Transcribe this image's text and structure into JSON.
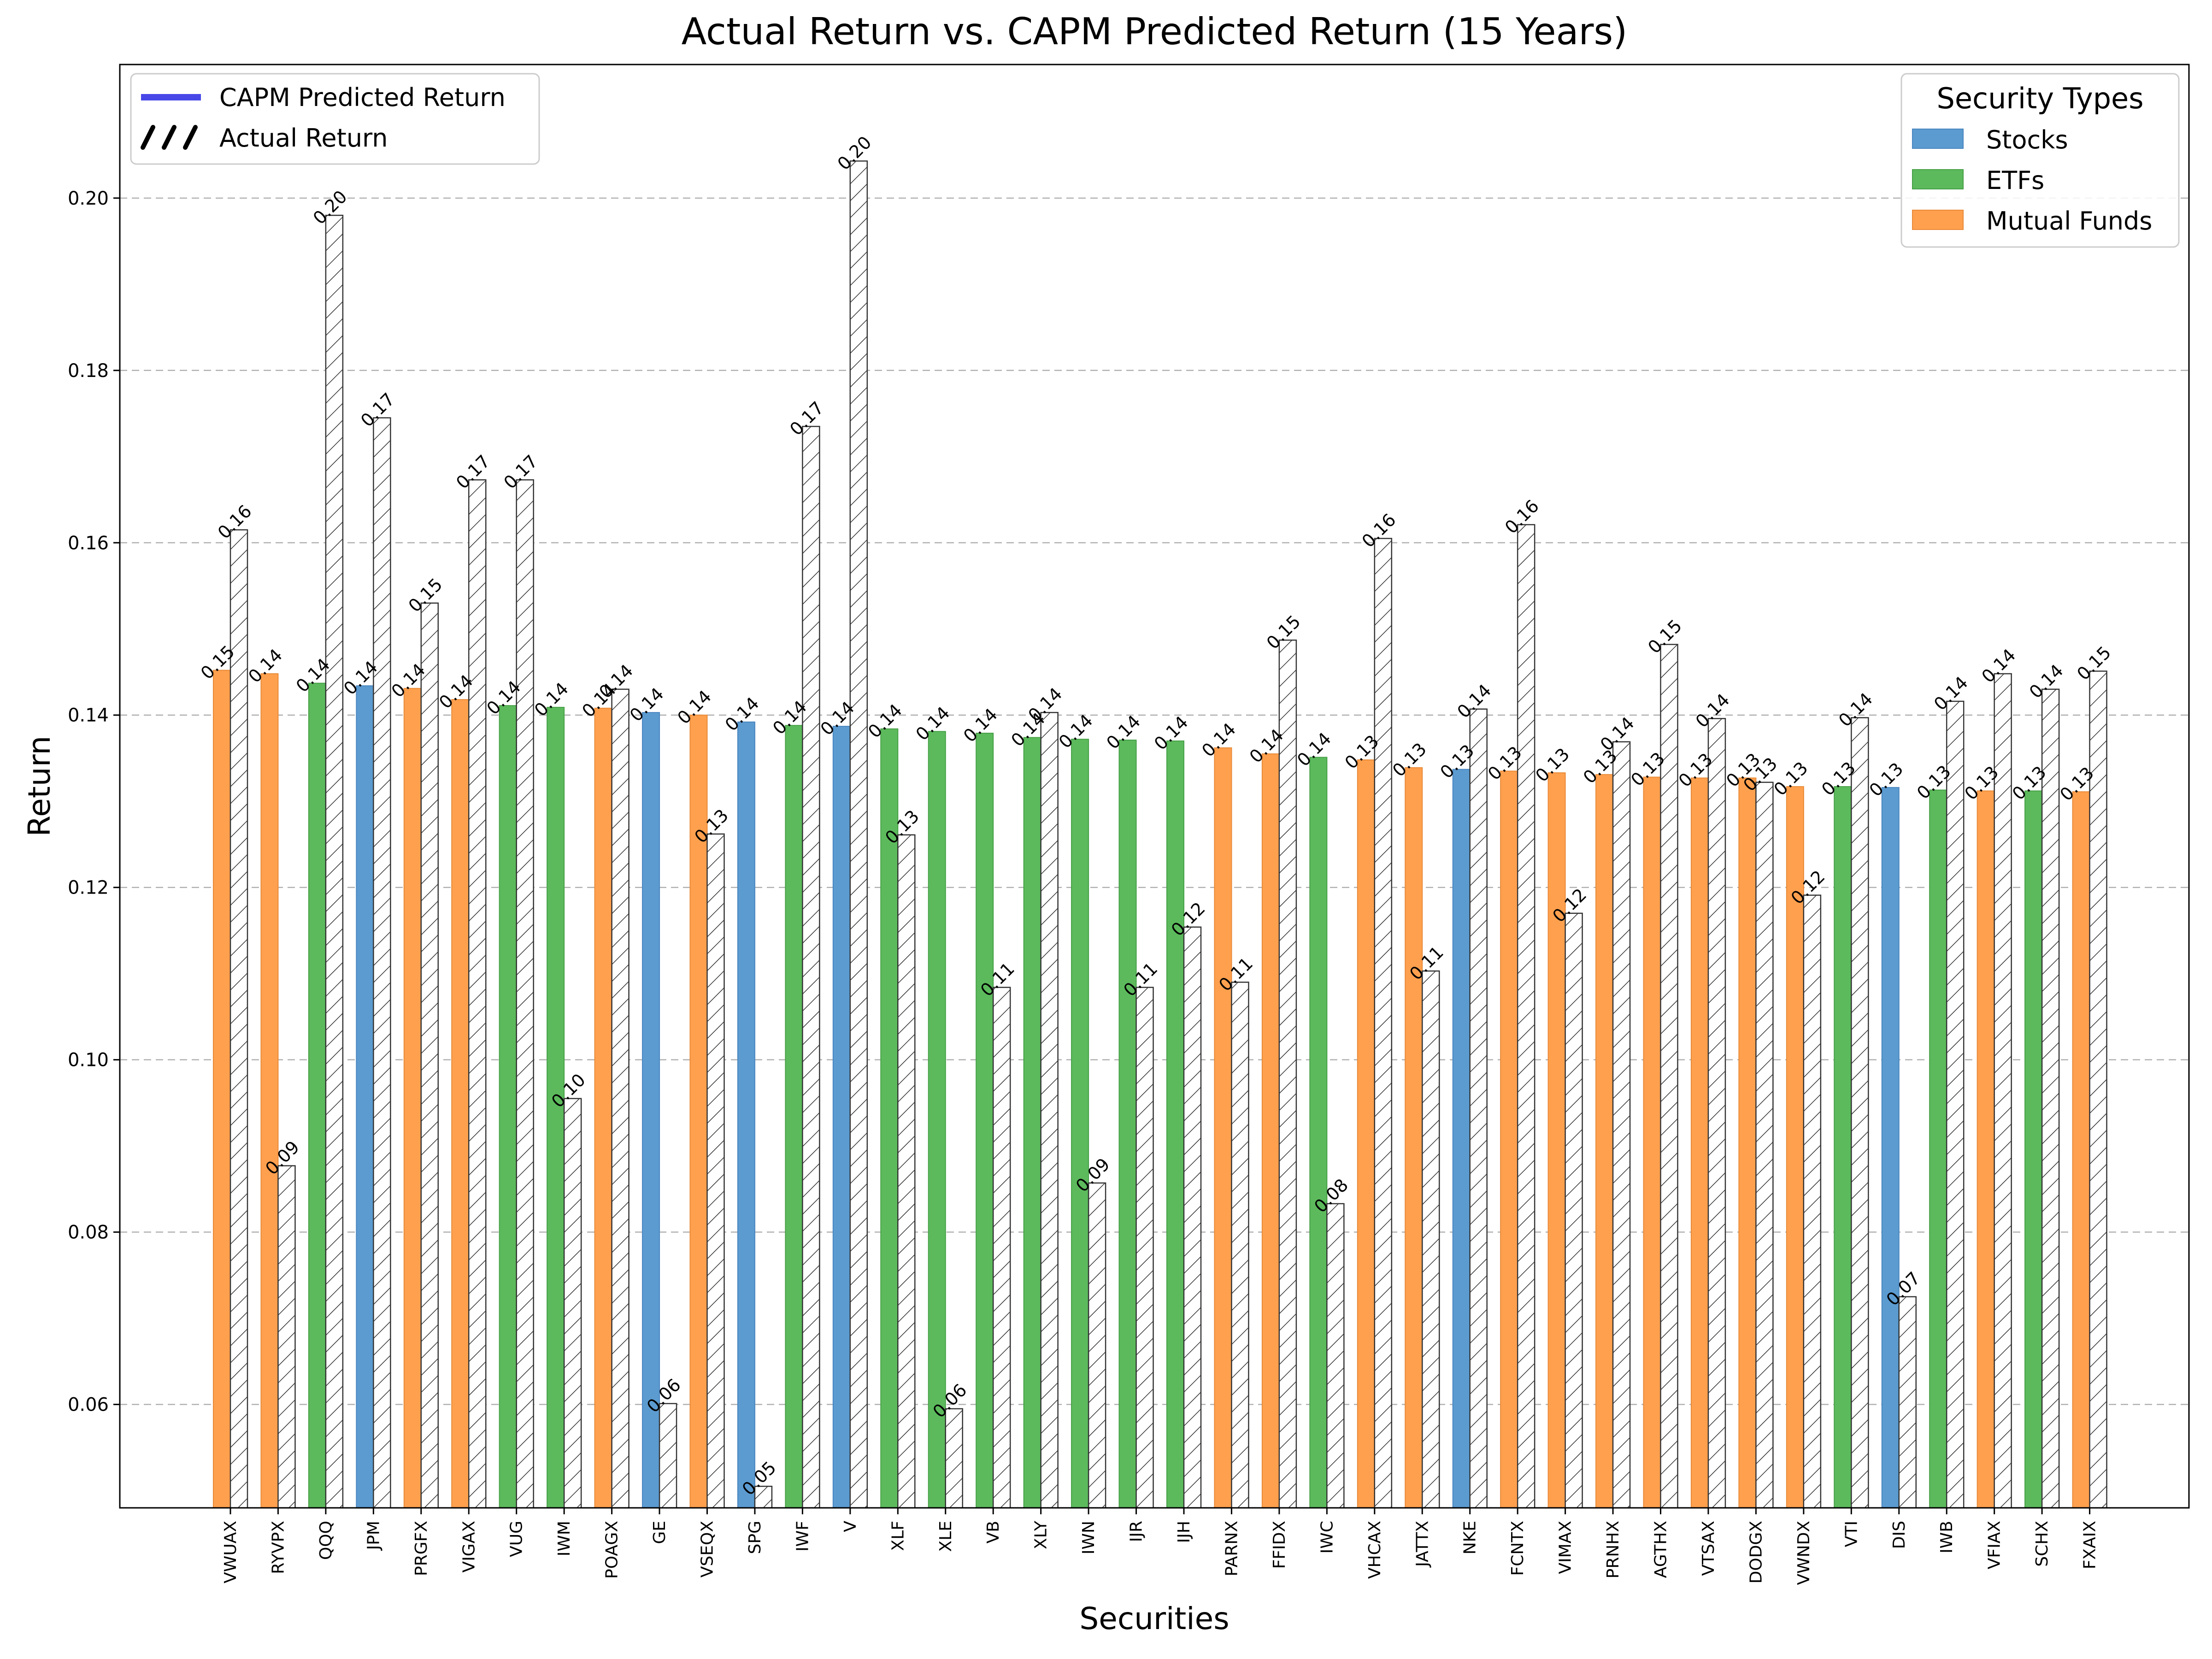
{
  "chart_data": {
    "type": "bar",
    "title": "Actual Return vs. CAPM Predicted Return (15 Years)",
    "xlabel": "Securities",
    "ylabel": "Return",
    "ylim": [
      0.048,
      0.2155
    ],
    "yticks": [
      0.06,
      0.08,
      0.1,
      0.12,
      0.14,
      0.16,
      0.18,
      0.2
    ],
    "grid": "y-dashed",
    "type_colors": {
      "Stocks": "#5b9bd0",
      "ETFs": "#5cba5c",
      "Mutual Funds": "#ffa04e"
    },
    "legend_returns": {
      "placement": "top-left",
      "items": [
        {
          "label": "CAPM Predicted Return",
          "color": "#4747e8"
        },
        {
          "label": "Actual Return",
          "hatch": true
        }
      ]
    },
    "legend_types": {
      "placement": "top-right",
      "title": "Security Types",
      "items": [
        "Stocks",
        "ETFs",
        "Mutual Funds"
      ]
    },
    "categories": [
      "VWUAX",
      "RYVPX",
      "QQQ",
      "JPM",
      "PRGFX",
      "VIGAX",
      "VUG",
      "IWM",
      "POAGX",
      "GE",
      "VSEQX",
      "SPG",
      "IWF",
      "V",
      "XLF",
      "XLE",
      "VB",
      "XLY",
      "IWN",
      "IJR",
      "IJH",
      "PARNX",
      "FFIDX",
      "IWC",
      "VHCAX",
      "JATTX",
      "NKE",
      "FCNTX",
      "VIMAX",
      "PRNHX",
      "AGTHX",
      "VTSAX",
      "DODGX",
      "VWNDX",
      "VTI",
      "DIS",
      "IWB",
      "VFIAX",
      "SCHX",
      "FXAIX"
    ],
    "security_types": [
      "Mutual Funds",
      "Mutual Funds",
      "ETFs",
      "Stocks",
      "Mutual Funds",
      "Mutual Funds",
      "ETFs",
      "ETFs",
      "Mutual Funds",
      "Stocks",
      "Mutual Funds",
      "Stocks",
      "ETFs",
      "Stocks",
      "ETFs",
      "ETFs",
      "ETFs",
      "ETFs",
      "ETFs",
      "ETFs",
      "ETFs",
      "Mutual Funds",
      "Mutual Funds",
      "ETFs",
      "Mutual Funds",
      "Mutual Funds",
      "Stocks",
      "Mutual Funds",
      "Mutual Funds",
      "Mutual Funds",
      "Mutual Funds",
      "Mutual Funds",
      "Mutual Funds",
      "Mutual Funds",
      "ETFs",
      "Stocks",
      "ETFs",
      "Mutual Funds",
      "ETFs",
      "Mutual Funds"
    ],
    "series": [
      {
        "name": "CAPM Predicted Return",
        "values": [
          0.1452,
          0.1448,
          0.1437,
          0.1434,
          0.1431,
          0.1418,
          0.1411,
          0.1409,
          0.1408,
          0.1403,
          0.14,
          0.1392,
          0.1388,
          0.1387,
          0.1384,
          0.1381,
          0.1379,
          0.1374,
          0.1372,
          0.1371,
          0.137,
          0.1362,
          0.1355,
          0.1351,
          0.1348,
          0.1339,
          0.1337,
          0.1335,
          0.1333,
          0.1331,
          0.1328,
          0.1327,
          0.1327,
          0.1317,
          0.1317,
          0.1316,
          0.1313,
          0.1312,
          0.1312,
          0.1311
        ]
      },
      {
        "name": "Actual Return",
        "values": [
          0.1615,
          0.0877,
          0.198,
          0.1745,
          0.153,
          0.1673,
          0.1673,
          0.0955,
          0.143,
          0.0601,
          0.1262,
          0.0505,
          0.1735,
          0.2043,
          0.1261,
          0.0595,
          0.1084,
          0.1403,
          0.0857,
          0.1084,
          0.1154,
          0.109,
          0.1487,
          0.0833,
          0.1605,
          0.1103,
          0.1407,
          0.1621,
          0.117,
          0.1369,
          0.1482,
          0.1396,
          0.1322,
          0.1191,
          0.1397,
          0.0725,
          0.1416,
          0.1448,
          0.143,
          0.1451
        ]
      }
    ],
    "value_labels": {
      "predicted": [
        "0.15",
        "0.14",
        "0.14",
        "0.14",
        "0.14",
        "0.14",
        "0.14",
        "0.14",
        "0.14",
        "0.14",
        "0.14",
        "0.14",
        "0.14",
        "0.14",
        "0.14",
        "0.14",
        "0.14",
        "0.14",
        "0.14",
        "0.14",
        "0.14",
        "0.14",
        "0.14",
        "0.14",
        "0.13",
        "0.13",
        "0.13",
        "0.13",
        "0.13",
        "0.13",
        "0.13",
        "0.13",
        "0.13",
        "0.13",
        "0.13",
        "0.13",
        "0.13",
        "0.13",
        "0.13",
        "0.13"
      ],
      "actual": [
        "0.16",
        "0.09",
        "0.20",
        "0.17",
        "0.15",
        "0.17",
        "0.17",
        "0.10",
        "0.14",
        "0.06",
        "0.13",
        "0.05",
        "0.17",
        "0.20",
        "0.13",
        "0.06",
        "0.11",
        "0.14",
        "0.09",
        "0.11",
        "0.12",
        "0.11",
        "0.15",
        "0.08",
        "0.16",
        "0.11",
        "0.14",
        "0.16",
        "0.12",
        "0.14",
        "0.15",
        "0.14",
        "0.13",
        "0.12",
        "0.14",
        "0.07",
        "0.14",
        "0.14",
        "0.14",
        "0.15"
      ]
    }
  }
}
